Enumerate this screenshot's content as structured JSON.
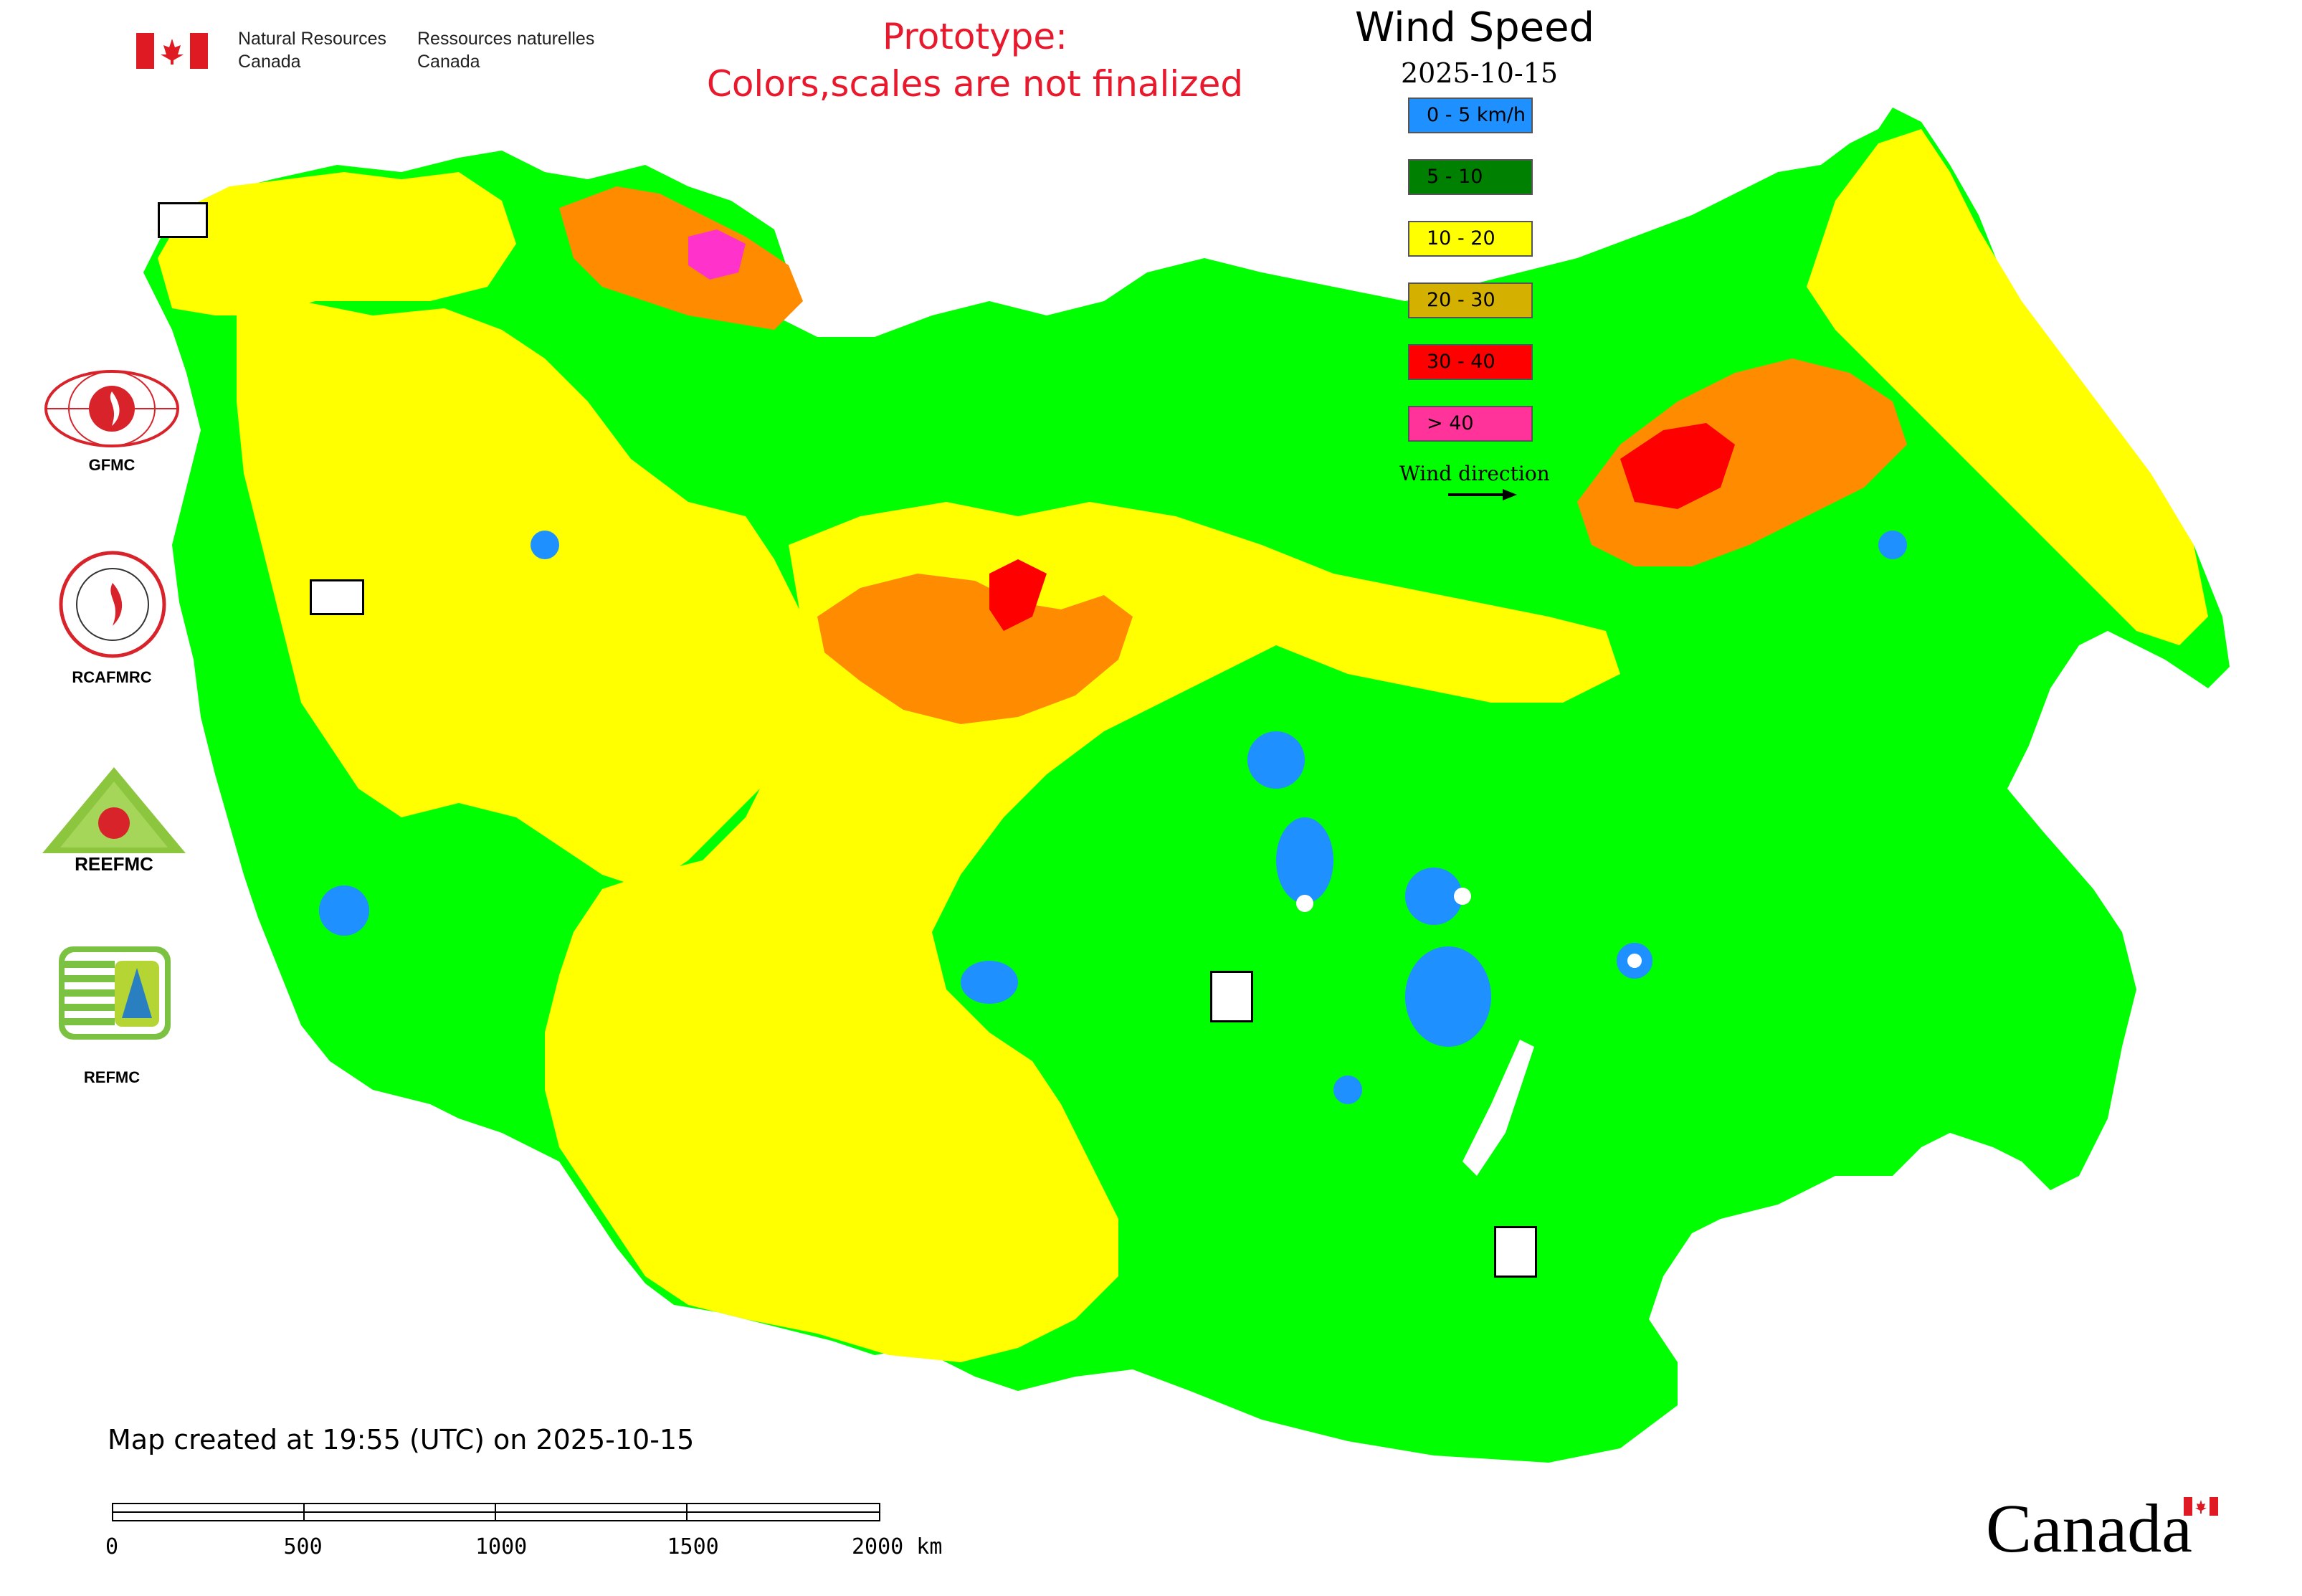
{
  "header": {
    "agency_en_line1": "Natural Resources",
    "agency_en_line2": "Canada",
    "agency_fr_line1": "Ressources naturelles",
    "agency_fr_line2": "Canada",
    "notice_line1": "Prototype:",
    "notice_line2": "Colors,scales are not finalized",
    "notice_color": "#e8192c"
  },
  "legend": {
    "title": "Wind Speed",
    "date": "2025-10-15",
    "classes": [
      {
        "label": "0 - 5 km/h",
        "color": "#1e90ff"
      },
      {
        "label": "5 - 10",
        "color": "#008000"
      },
      {
        "label": "10 - 20",
        "color": "#ffff00"
      },
      {
        "label": "20 - 30",
        "color": "#d4b000"
      },
      {
        "label": "30 - 40",
        "color": "#ff0000"
      },
      {
        "label": "> 40",
        "color": "#ff3399"
      }
    ],
    "direction_label": "Wind direction"
  },
  "logos": [
    {
      "name": "GFMC",
      "icon": "gfmc-logo-icon"
    },
    {
      "name": "RCAFMRC",
      "icon": "rcafmrc-logo-icon"
    },
    {
      "name": "REEFMC",
      "icon": "reefmc-logo-icon"
    },
    {
      "name": "REFMC",
      "icon": "refmc-logo-icon"
    }
  ],
  "map_colors": {
    "green": "#00ff00",
    "yellow": "#ffff00",
    "orange": "#ff8c00",
    "red": "#ff0000",
    "magenta": "#ff33cc",
    "blue": "#1e90ff"
  },
  "footer": {
    "created_text": "Map created at 19:55 (UTC) on 2025-10-15",
    "scale_labels": [
      "0",
      "500",
      "1000",
      "1500",
      "2000 km"
    ],
    "wordmark": "Canada"
  }
}
